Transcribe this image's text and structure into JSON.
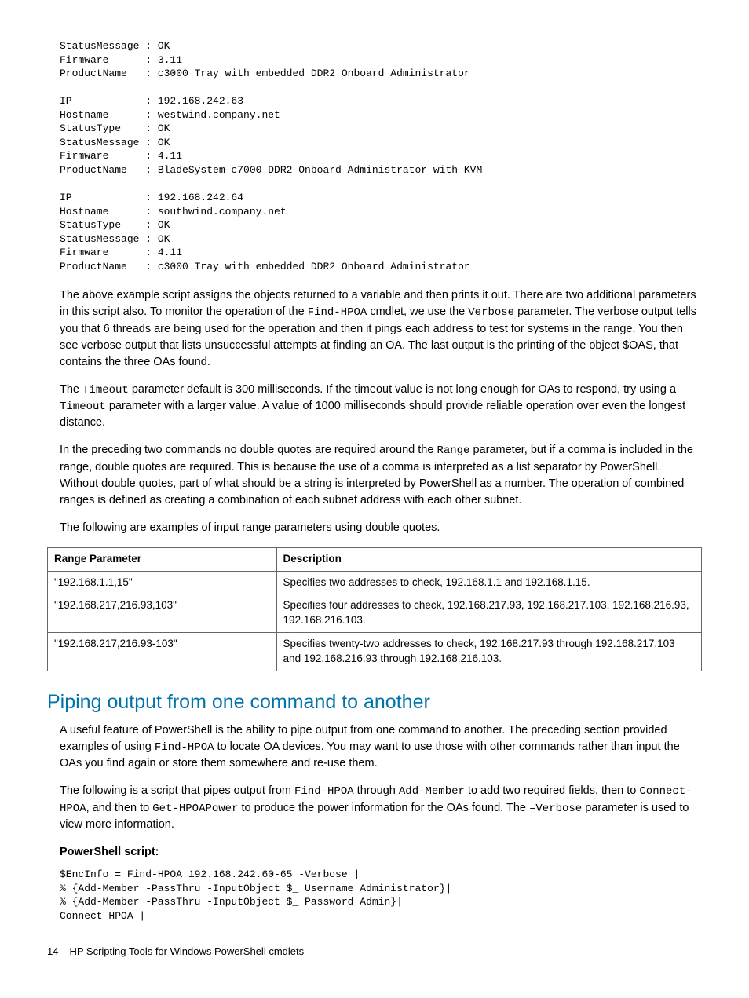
{
  "colors": {
    "heading": "#0073a8",
    "border": "#666666",
    "text": "#000000",
    "background": "#ffffff"
  },
  "typography": {
    "body_fontsize": 14.5,
    "mono_fontsize": 13,
    "heading_fontsize": 25,
    "heading_weight": 300
  },
  "code_block1": "StatusMessage : OK\nFirmware      : 3.11\nProductName   : c3000 Tray with embedded DDR2 Onboard Administrator\n\nIP            : 192.168.242.63\nHostname      : westwind.company.net\nStatusType    : OK\nStatusMessage : OK\nFirmware      : 4.11\nProductName   : BladeSystem c7000 DDR2 Onboard Administrator with KVM\n\nIP            : 192.168.242.64\nHostname      : southwind.company.net\nStatusType    : OK\nStatusMessage : OK\nFirmware      : 4.11\nProductName   : c3000 Tray with embedded DDR2 Onboard Administrator",
  "p1a": "The above example script assigns the objects returned to a variable and then prints it out. There are two additional parameters in this script also. To monitor the operation of the ",
  "p1_code1": "Find-HPOA",
  "p1b": " cmdlet, we use the ",
  "p1_code2": "Verbose",
  "p1c": " parameter. The verbose output tells you that 6 threads are being used for the operation and then it pings each address to test for systems in the range. You then see verbose output that lists unsuccessful attempts at finding an OA. The last output is the printing of the object $OAS, that contains the three OAs found.",
  "p2a": "The ",
  "p2_code1": "Timeout",
  "p2b": " parameter default is 300 milliseconds. If the timeout value is not long enough for OAs to respond, try using a ",
  "p2_code2": "Timeout",
  "p2c": " parameter with a larger value. A value of 1000 milliseconds should provide reliable operation over even the longest distance.",
  "p3a": "In the preceding two commands no double quotes are required around the ",
  "p3_code1": "Range",
  "p3b": " parameter, but if a comma is included in the range, double quotes are required. This is because the use of a comma is interpreted as a list separator by PowerShell. Without double quotes, part of what should be a string is interpreted by PowerShell as a number. The operation of combined ranges is defined as creating a combination of each subnet address with each other subnet.",
  "p4": "The following are examples of input range parameters using double quotes.",
  "table": {
    "columns": [
      "Range Parameter",
      "Description"
    ],
    "rows": [
      [
        "\"192.168.1.1,15\"",
        "Specifies two addresses to check, 192.168.1.1 and 192.168.1.15."
      ],
      [
        "\"192.168.217,216.93,103\"",
        "Specifies four addresses to check, 192.168.217.93, 192.168.217.103, 192.168.216.93, 192.168.216.103."
      ],
      [
        "\"192.168.217,216.93-103\"",
        "Specifies twenty-two addresses to check, 192.168.217.93 through 192.168.217.103 and 192.168.216.93 through 192.168.216.103."
      ]
    ]
  },
  "h2": "Piping output from one command to another",
  "p5a": "A useful feature of PowerShell is the ability to pipe output from one command to another. The preceding section provided examples of using ",
  "p5_code1": "Find-HPOA",
  "p5b": " to locate OA devices. You may want to use those with other commands rather than input the OAs you find again or store them somewhere and re-use them.",
  "p6a": "The following is a script that pipes output from ",
  "p6_code1": "Find-HPOA",
  "p6b": " through ",
  "p6_code2": "Add-Member",
  "p6c": " to add two required fields, then to ",
  "p6_code3": "Connect-HPOA",
  "p6d": ", and then to ",
  "p6_code4": "Get-HPOAPower",
  "p6e": " to produce the power information for the OAs found. The ",
  "p6_code5": "–Verbose",
  "p6f": " parameter is used to view more information.",
  "script_label": "PowerShell script:",
  "code_block2": "$EncInfo = Find-HPOA 192.168.242.60-65 -Verbose |\n% {Add-Member -PassThru -InputObject $_ Username Administrator}|\n% {Add-Member -PassThru -InputObject $_ Password Admin}|\nConnect-HPOA |",
  "footer": {
    "page": "14",
    "title": "HP Scripting Tools for Windows PowerShell cmdlets"
  }
}
